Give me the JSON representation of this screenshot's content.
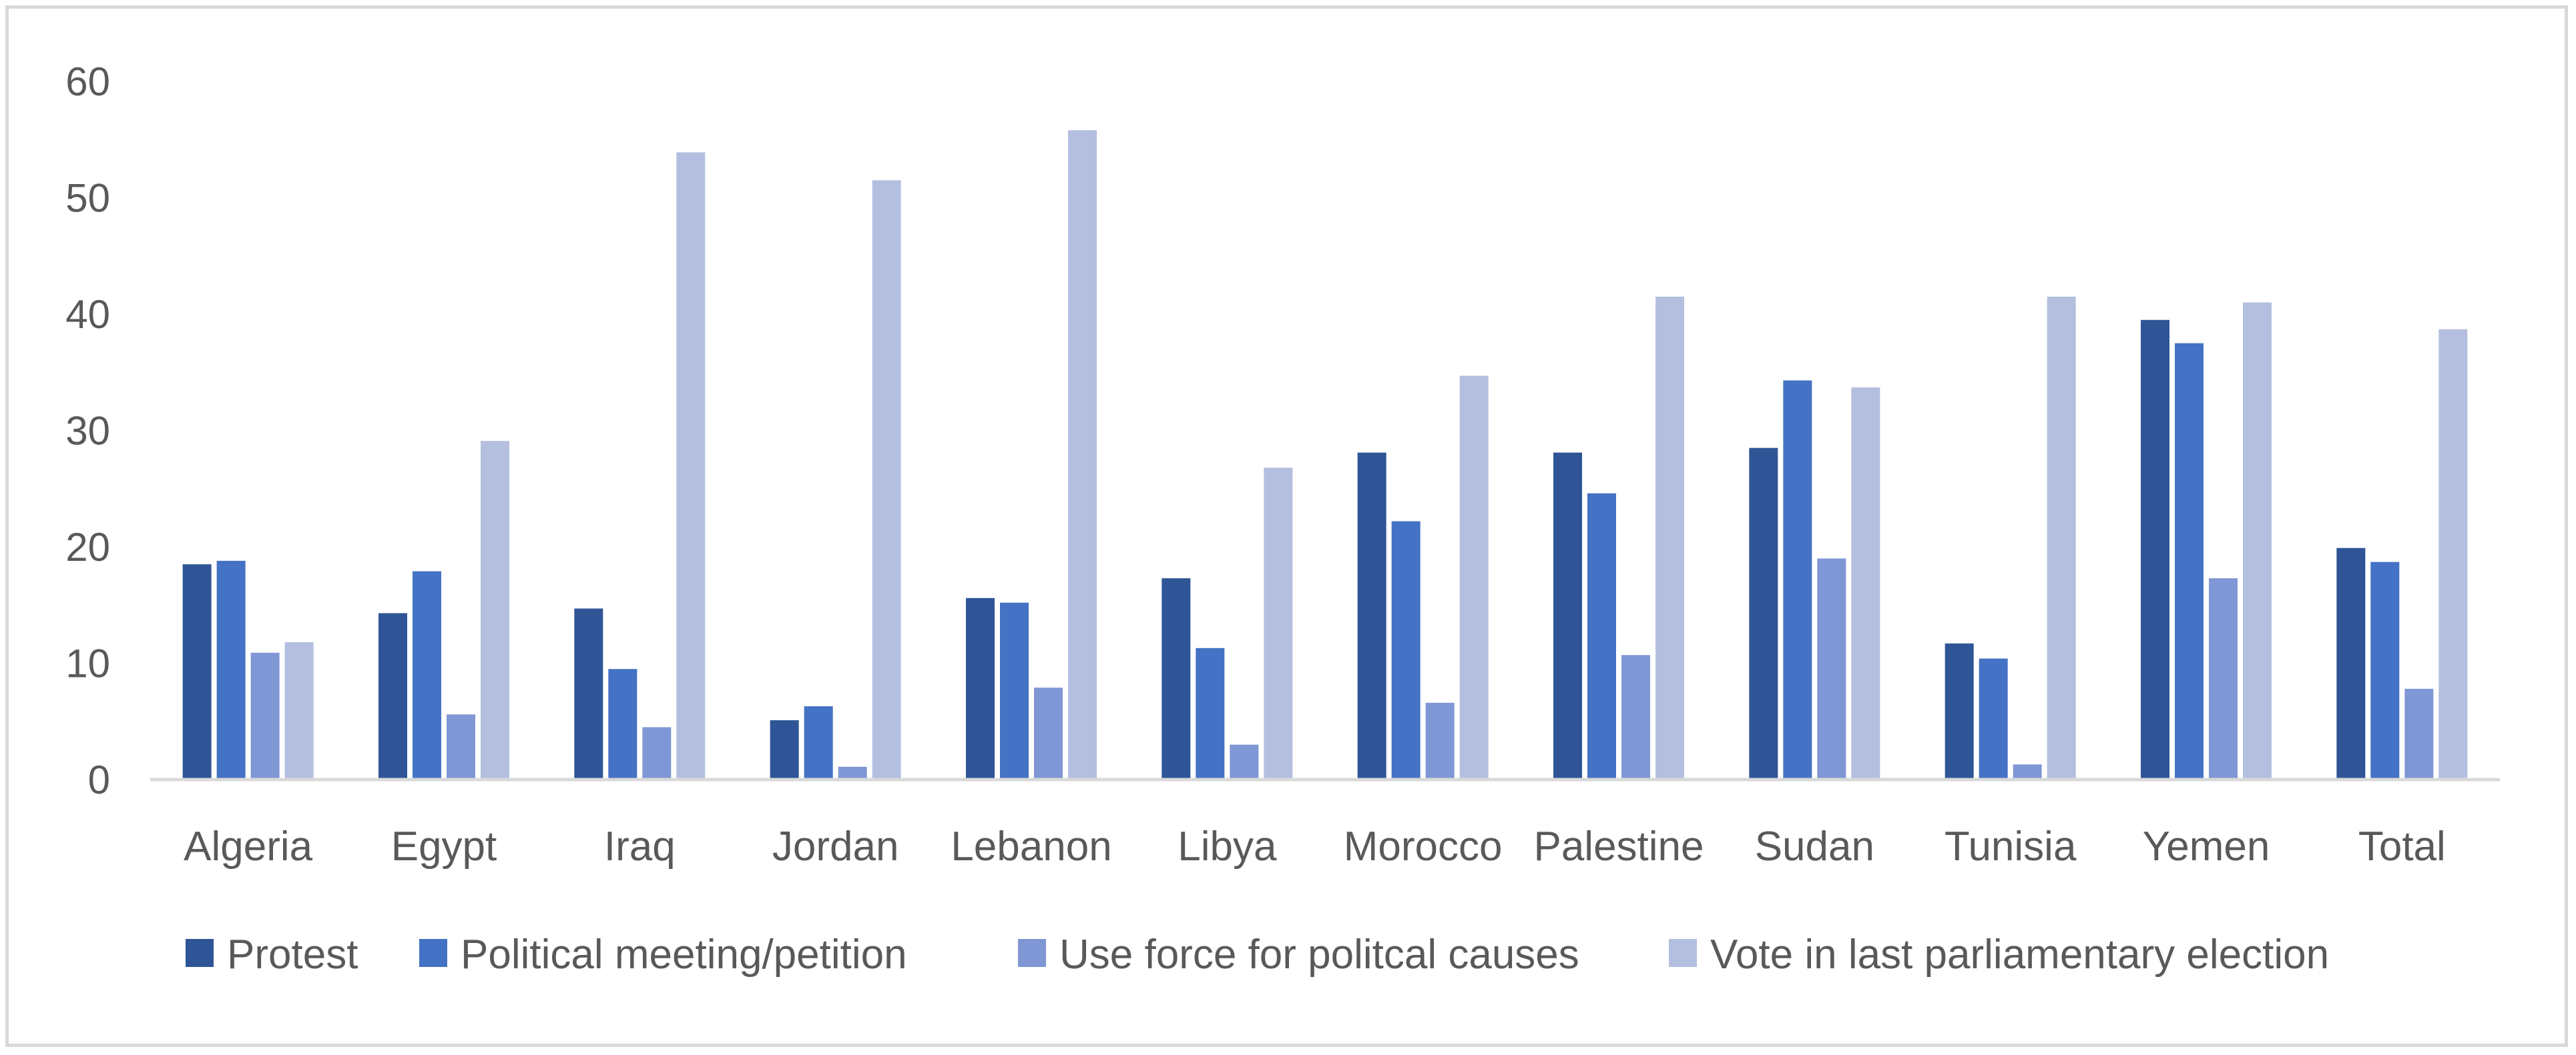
{
  "chart_data": {
    "type": "bar",
    "title": "",
    "xlabel": "",
    "ylabel": "",
    "ylim": [
      0,
      60
    ],
    "yticks": [
      0,
      10,
      20,
      30,
      40,
      50,
      60
    ],
    "grid": false,
    "legend_position": "bottom",
    "categories": [
      "Algeria",
      "Egypt",
      "Iraq",
      "Jordan",
      "Lebanon",
      "Libya",
      "Morocco",
      "Palestine",
      "Sudan",
      "Tunisia",
      "Yemen",
      "Total"
    ],
    "series": [
      {
        "name": "Protest",
        "color": "#2f5597",
        "values": [
          18.5,
          14.3,
          14.7,
          5.1,
          15.6,
          17.3,
          28.1,
          28.1,
          28.5,
          11.7,
          39.5,
          19.9
        ]
      },
      {
        "name": "Political meeting/petition",
        "color": "#4472c4",
        "values": [
          18.8,
          17.9,
          9.5,
          6.3,
          15.2,
          11.3,
          22.2,
          24.6,
          34.3,
          10.4,
          37.5,
          18.7
        ]
      },
      {
        "name": "Use force for politcal causes",
        "color": "#7f97d4",
        "values": [
          10.9,
          5.6,
          4.5,
          1.1,
          7.9,
          3.0,
          6.6,
          10.7,
          19.0,
          1.3,
          17.3,
          7.8
        ]
      },
      {
        "name": "Vote in last parliamentary election",
        "color": "#b4bfe0",
        "values": [
          11.8,
          29.1,
          53.9,
          51.5,
          55.8,
          26.8,
          34.7,
          41.5,
          33.7,
          41.5,
          41.0,
          38.7
        ]
      }
    ]
  }
}
